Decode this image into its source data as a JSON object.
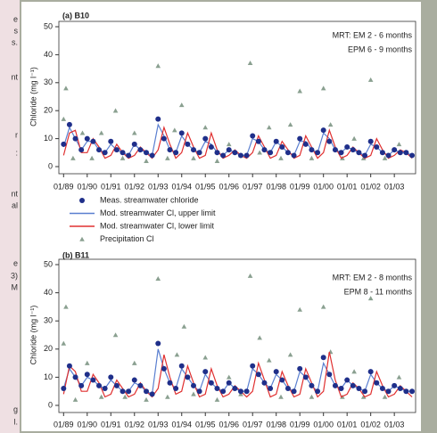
{
  "side_text": [
    "e",
    "s",
    "s.",
    "nt",
    "r",
    ":",
    "nt",
    "al",
    "e",
    "3)",
    "M",
    "g",
    "l."
  ],
  "chart_data": [
    {
      "type": "line",
      "title": "(a) B10",
      "title_color": "#e03a2a",
      "ylabel": "Chloride (mg l⁻¹)",
      "annotations": [
        "MRT: EM 2 - 6 months",
        "EPM 6 - 9 months"
      ],
      "xlim": [
        1988.8,
        2003.9
      ],
      "ylim": [
        0,
        50
      ],
      "yticks": [
        0,
        10,
        20,
        30,
        40,
        50
      ],
      "xticks": [
        {
          "value": 1989,
          "label": "01/89"
        },
        {
          "value": 1990,
          "label": "01/90"
        },
        {
          "value": 1991,
          "label": "01/91"
        },
        {
          "value": 1992,
          "label": "01/92"
        },
        {
          "value": 1993,
          "label": "01/93"
        },
        {
          "value": 1994,
          "label": "01/94"
        },
        {
          "value": 1995,
          "label": "01/95"
        },
        {
          "value": 1996,
          "label": "01/96"
        },
        {
          "value": 1997,
          "label": "01/97"
        },
        {
          "value": 1998,
          "label": "01/98"
        },
        {
          "value": 1999,
          "label": "01/99"
        },
        {
          "value": 2000,
          "label": "01/00"
        },
        {
          "value": 2001,
          "label": "01/01"
        },
        {
          "value": 2002,
          "label": "01/02"
        },
        {
          "value": 2003,
          "label": "01/03"
        }
      ],
      "legend": "below",
      "x": [
        1989,
        1989.25,
        1989.5,
        1989.75,
        1990,
        1990.25,
        1990.5,
        1990.75,
        1991,
        1991.25,
        1991.5,
        1991.75,
        1992,
        1992.25,
        1992.5,
        1992.75,
        1993,
        1993.25,
        1993.5,
        1993.75,
        1994,
        1994.25,
        1994.5,
        1994.75,
        1995,
        1995.25,
        1995.5,
        1995.75,
        1996,
        1996.25,
        1996.5,
        1996.75,
        1997,
        1997.25,
        1997.5,
        1997.75,
        1998,
        1998.25,
        1998.5,
        1998.75,
        1999,
        1999.25,
        1999.5,
        1999.75,
        2000,
        2000.25,
        2000.5,
        2000.75,
        2001,
        2001.25,
        2001.5,
        2001.75,
        2002,
        2002.25,
        2002.5,
        2002.75,
        2003,
        2003.25,
        2003.5,
        2003.75
      ],
      "series": [
        {
          "name": "Meas. streamwater chloride",
          "style": "circle",
          "color": "#1f2f8a",
          "values": [
            8,
            15,
            10,
            6,
            10,
            9,
            6,
            5,
            9,
            6,
            5,
            4,
            8,
            6,
            5,
            4,
            17,
            10,
            6,
            5,
            12,
            8,
            6,
            5,
            10,
            7,
            5,
            4,
            6,
            5,
            4,
            4,
            11,
            9,
            6,
            5,
            9,
            7,
            5,
            4,
            10,
            8,
            6,
            5,
            13,
            9,
            6,
            5,
            7,
            6,
            5,
            4,
            9,
            7,
            5,
            4,
            6,
            5,
            5,
            4
          ]
        },
        {
          "name": "Mod. streamwater Cl, upper limit",
          "style": "line",
          "color": "#5a7fd0",
          "values": [
            7,
            14,
            10,
            6,
            9,
            9,
            6,
            5,
            8,
            6,
            5,
            4,
            8,
            6,
            5,
            4,
            15,
            11,
            6,
            5,
            11,
            8,
            6,
            5,
            9,
            8,
            5,
            4,
            6,
            5,
            4,
            4,
            10,
            9,
            6,
            5,
            9,
            7,
            5,
            4,
            9,
            9,
            6,
            5,
            12,
            10,
            6,
            5,
            7,
            6,
            5,
            4,
            8,
            7,
            5,
            4,
            6,
            5,
            5,
            4
          ]
        },
        {
          "name": "Mod. streamwater Cl, lower limit",
          "style": "line",
          "color": "#e03030",
          "values": [
            4,
            12,
            13,
            5,
            5,
            10,
            7,
            3,
            4,
            8,
            5,
            3,
            4,
            7,
            5,
            3,
            6,
            14,
            8,
            3,
            5,
            12,
            7,
            3,
            4,
            12,
            6,
            3,
            4,
            6,
            4,
            3,
            5,
            11,
            7,
            3,
            4,
            9,
            6,
            3,
            4,
            11,
            7,
            3,
            5,
            13,
            7,
            3,
            4,
            7,
            5,
            3,
            4,
            10,
            6,
            3,
            4,
            6,
            5,
            3
          ]
        },
        {
          "name": "Precipitation Cl",
          "style": "triangle",
          "color": "#8aa090",
          "x": [
            1989.1,
            1989.0,
            1989.4,
            1989.8,
            1990.2,
            1990.6,
            1991.2,
            1991.5,
            1992.0,
            1992.5,
            1993.0,
            1993.4,
            1993.7,
            1994.0,
            1994.5,
            1995.0,
            1995.5,
            1996.0,
            1996.5,
            1996.9,
            1997.3,
            1997.7,
            1998.2,
            1998.6,
            1999.0,
            1999.5,
            2000.0,
            2000.3,
            2000.8,
            2001.3,
            2001.7,
            2002.0,
            2002.6,
            2003.2
          ],
          "values": [
            28,
            17,
            3,
            12,
            3,
            12,
            20,
            3,
            12,
            2,
            36,
            3,
            13,
            22,
            3,
            14,
            2,
            8,
            4,
            37,
            5,
            14,
            3,
            15,
            27,
            3,
            28,
            15,
            3,
            10,
            3,
            31,
            3,
            8
          ]
        }
      ]
    },
    {
      "type": "line",
      "title": "(b) B11",
      "title_color": "#3aa83a",
      "ylabel": "Chloride (mg l⁻¹)",
      "annotations": [
        "MRT: EM 2 - 8 months",
        "EPM 8 - 11 months"
      ],
      "xlim": [
        1988.8,
        2003.9
      ],
      "ylim": [
        0,
        50
      ],
      "yticks": [
        0,
        10,
        20,
        30,
        40,
        50
      ],
      "xticks": [
        {
          "value": 1989,
          "label": "01/89"
        },
        {
          "value": 1990,
          "label": "01/90"
        },
        {
          "value": 1991,
          "label": "01/91"
        },
        {
          "value": 1992,
          "label": "01/92"
        },
        {
          "value": 1993,
          "label": "01/93"
        },
        {
          "value": 1994,
          "label": "01/94"
        },
        {
          "value": 1995,
          "label": "01/95"
        },
        {
          "value": 1996,
          "label": "01/96"
        },
        {
          "value": 1997,
          "label": "01/97"
        },
        {
          "value": 1998,
          "label": "01/98"
        },
        {
          "value": 1999,
          "label": "01/99"
        },
        {
          "value": 2000,
          "label": "01/00"
        },
        {
          "value": 2001,
          "label": "01/01"
        },
        {
          "value": 2002,
          "label": "01/02"
        },
        {
          "value": 2003,
          "label": "01/03"
        }
      ],
      "x": [
        1989,
        1989.25,
        1989.5,
        1989.75,
        1990,
        1990.25,
        1990.5,
        1990.75,
        1991,
        1991.25,
        1991.5,
        1991.75,
        1992,
        1992.25,
        1992.5,
        1992.75,
        1993,
        1993.25,
        1993.5,
        1993.75,
        1994,
        1994.25,
        1994.5,
        1994.75,
        1995,
        1995.25,
        1995.5,
        1995.75,
        1996,
        1996.25,
        1996.5,
        1996.75,
        1997,
        1997.25,
        1997.5,
        1997.75,
        1998,
        1998.25,
        1998.5,
        1998.75,
        1999,
        1999.25,
        1999.5,
        1999.75,
        2000,
        2000.25,
        2000.5,
        2000.75,
        2001,
        2001.25,
        2001.5,
        2001.75,
        2002,
        2002.25,
        2002.5,
        2002.75,
        2003,
        2003.25,
        2003.5,
        2003.75
      ],
      "series": [
        {
          "style": "circle",
          "color": "#1f2f8a",
          "values": [
            6,
            14,
            10,
            7,
            11,
            9,
            7,
            6,
            10,
            7,
            5,
            5,
            9,
            7,
            5,
            4,
            22,
            13,
            8,
            6,
            14,
            10,
            7,
            5,
            12,
            8,
            6,
            5,
            8,
            6,
            5,
            5,
            14,
            11,
            8,
            6,
            12,
            9,
            6,
            5,
            13,
            10,
            7,
            5,
            17,
            11,
            7,
            6,
            9,
            7,
            6,
            5,
            12,
            8,
            6,
            5,
            7,
            6,
            5,
            5
          ]
        },
        {
          "style": "line",
          "color": "#5a7fd0",
          "values": [
            6,
            13,
            10,
            7,
            10,
            9,
            7,
            6,
            9,
            7,
            5,
            5,
            8,
            7,
            5,
            4,
            20,
            13,
            8,
            6,
            13,
            10,
            7,
            5,
            11,
            8,
            6,
            5,
            8,
            6,
            5,
            5,
            13,
            11,
            8,
            6,
            11,
            9,
            6,
            5,
            12,
            10,
            7,
            5,
            15,
            11,
            7,
            6,
            9,
            7,
            6,
            5,
            11,
            8,
            6,
            5,
            7,
            6,
            5,
            5
          ]
        },
        {
          "style": "line",
          "color": "#e03030",
          "values": [
            4,
            14,
            12,
            5,
            5,
            11,
            8,
            3,
            4,
            9,
            6,
            3,
            4,
            8,
            5,
            3,
            6,
            18,
            10,
            4,
            5,
            14,
            8,
            3,
            4,
            13,
            7,
            3,
            4,
            7,
            5,
            3,
            5,
            15,
            9,
            3,
            4,
            12,
            7,
            3,
            4,
            13,
            8,
            3,
            5,
            19,
            9,
            3,
            4,
            8,
            6,
            3,
            4,
            12,
            7,
            3,
            4,
            7,
            5,
            3
          ]
        },
        {
          "style": "triangle",
          "color": "#8aa090",
          "x": [
            1989.1,
            1989.0,
            1989.5,
            1990.0,
            1990.6,
            1991.2,
            1991.6,
            1992.0,
            1992.5,
            1993.0,
            1993.4,
            1993.8,
            1994.1,
            1994.5,
            1995.0,
            1995.5,
            1996.0,
            1996.5,
            1996.9,
            1997.3,
            1997.7,
            1998.2,
            1998.6,
            1999.0,
            1999.5,
            2000.0,
            2000.3,
            2000.8,
            2001.3,
            2001.7,
            2002.0,
            2002.6,
            2003.2
          ],
          "values": [
            35,
            22,
            2,
            15,
            3,
            25,
            3,
            15,
            2,
            45,
            3,
            18,
            28,
            4,
            17,
            2,
            10,
            4,
            46,
            24,
            16,
            3,
            18,
            34,
            3,
            35,
            19,
            3,
            12,
            3,
            38,
            3,
            10
          ]
        }
      ]
    }
  ]
}
